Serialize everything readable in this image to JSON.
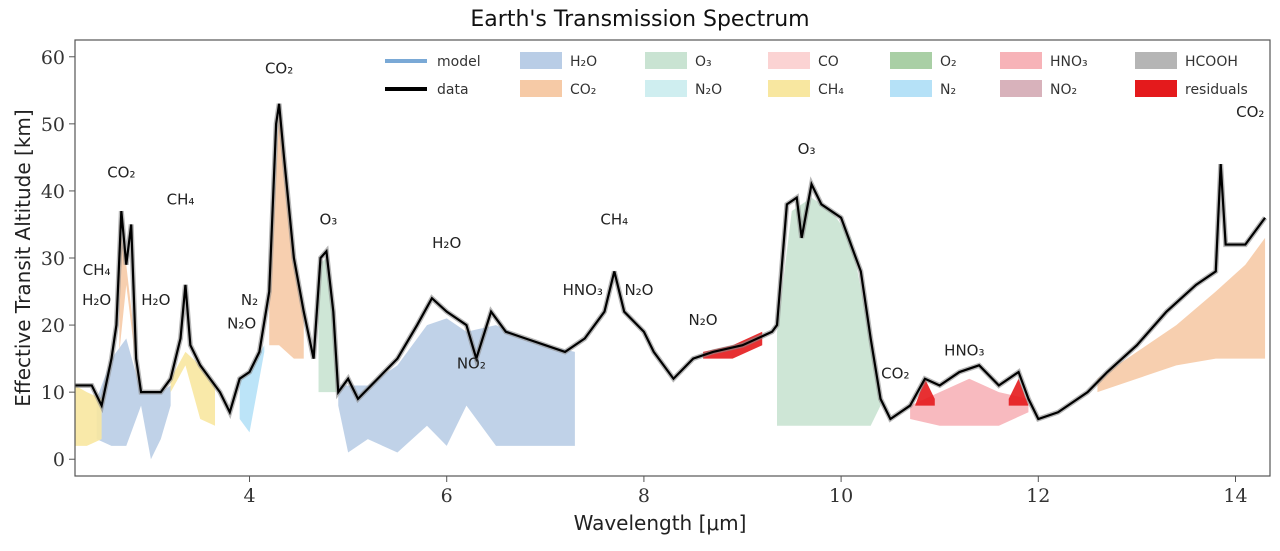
{
  "chart_data": {
    "type": "area",
    "title": "Earth's Transmission Spectrum",
    "xlabel": "Wavelength [μm]",
    "ylabel": "Effective Transit Altitude [km]",
    "xlim": [
      2.23,
      14.35
    ],
    "ylim": [
      -2.5,
      62.5
    ],
    "xticks": [
      4,
      6,
      8,
      10,
      12,
      14
    ],
    "yticks": [
      0,
      10,
      20,
      30,
      40,
      50,
      60
    ],
    "grid": false,
    "legend_position": "top",
    "colors": {
      "model": "#7aa9d6",
      "data": "#000000",
      "H₂O": "#b9cde6",
      "CO₂": "#f6caa6",
      "O₃": "#c9e3d2",
      "N₂O": "#cfeef0",
      "CO": "#fbd3d3",
      "CH₄": "#f8e7a0",
      "O₂": "#a9cfa5",
      "N₂": "#b5e1f7",
      "HNO₃": "#f7b3b8",
      "NO₂": "#d8b2bb",
      "HCOOH": "#b5b5b5",
      "residuals": "#e41a1c"
    },
    "legend": [
      {
        "label": "model",
        "kind": "line"
      },
      {
        "label": "data",
        "kind": "line"
      },
      {
        "label": "H₂O",
        "kind": "patch"
      },
      {
        "label": "CO₂",
        "kind": "patch"
      },
      {
        "label": "O₃",
        "kind": "patch"
      },
      {
        "label": "N₂O",
        "kind": "patch"
      },
      {
        "label": "CO",
        "kind": "patch"
      },
      {
        "label": "CH₄",
        "kind": "patch"
      },
      {
        "label": "O₂",
        "kind": "patch"
      },
      {
        "label": "N₂",
        "kind": "patch"
      },
      {
        "label": "HNO₃",
        "kind": "patch"
      },
      {
        "label": "NO₂",
        "kind": "patch"
      },
      {
        "label": "HCOOH",
        "kind": "patch"
      },
      {
        "label": "residuals",
        "kind": "patch"
      }
    ],
    "data_series": {
      "x": [
        2.23,
        2.4,
        2.5,
        2.6,
        2.65,
        2.7,
        2.75,
        2.8,
        2.85,
        2.9,
        3.1,
        3.2,
        3.3,
        3.35,
        3.4,
        3.5,
        3.6,
        3.7,
        3.8,
        3.9,
        4.0,
        4.1,
        4.2,
        4.27,
        4.3,
        4.35,
        4.45,
        4.55,
        4.65,
        4.72,
        4.78,
        4.85,
        4.9,
        5.0,
        5.1,
        5.3,
        5.5,
        5.7,
        5.85,
        6.0,
        6.2,
        6.3,
        6.45,
        6.6,
        6.8,
        7.0,
        7.2,
        7.4,
        7.6,
        7.7,
        7.8,
        8.0,
        8.1,
        8.3,
        8.5,
        8.7,
        9.0,
        9.3,
        9.35,
        9.45,
        9.55,
        9.6,
        9.7,
        9.8,
        10.0,
        10.2,
        10.3,
        10.4,
        10.5,
        10.7,
        10.85,
        11.0,
        11.2,
        11.4,
        11.6,
        11.8,
        11.9,
        12.0,
        12.2,
        12.5,
        12.7,
        13.0,
        13.3,
        13.6,
        13.8,
        13.85,
        13.9,
        14.1,
        14.3
      ],
      "y": [
        11,
        11,
        8,
        15,
        20,
        37,
        29,
        35,
        15,
        10,
        10,
        12,
        18,
        26,
        17,
        14,
        12,
        10,
        7,
        12,
        13,
        16,
        25,
        50,
        53,
        45,
        30,
        22,
        15,
        30,
        31,
        22,
        10,
        12,
        9,
        12,
        15,
        20,
        24,
        22,
        20,
        15,
        22,
        19,
        18,
        17,
        16,
        18,
        22,
        28,
        22,
        19,
        16,
        12,
        15,
        16,
        17,
        19,
        20,
        38,
        39,
        33,
        41,
        38,
        36,
        28,
        18,
        9,
        6,
        8,
        12,
        11,
        13,
        14,
        11,
        13,
        9,
        6,
        7,
        10,
        13,
        17,
        22,
        26,
        28,
        44,
        32,
        32,
        36
      ]
    },
    "absorbers": [
      {
        "species": "H₂O",
        "x": [
          2.45,
          2.6,
          2.75,
          2.9,
          3.0,
          3.1,
          3.2
        ],
        "lower": [
          3,
          2,
          2,
          8,
          0,
          3,
          8
        ],
        "upper": [
          9,
          15,
          18,
          10,
          10,
          10,
          11
        ]
      },
      {
        "species": "CH₄",
        "x": [
          2.23,
          2.35,
          2.5
        ],
        "lower": [
          2,
          2,
          3
        ],
        "upper": [
          11,
          10,
          9
        ]
      },
      {
        "species": "CO₂",
        "x": [
          2.68,
          2.75,
          2.85
        ],
        "lower": [
          16,
          26,
          14
        ],
        "upper": [
          35,
          29,
          16
        ]
      },
      {
        "species": "CH₄",
        "x": [
          3.2,
          3.35,
          3.5,
          3.65
        ],
        "lower": [
          10,
          14,
          6,
          5
        ],
        "upper": [
          12,
          16,
          14,
          11
        ]
      },
      {
        "species": "N₂",
        "x": [
          3.9,
          4.0,
          4.15
        ],
        "lower": [
          6,
          4,
          16
        ],
        "upper": [
          12,
          13,
          17
        ]
      },
      {
        "species": "CO₂",
        "x": [
          4.2,
          4.3,
          4.45,
          4.55
        ],
        "lower": [
          17,
          17,
          15,
          15
        ],
        "upper": [
          24,
          52,
          30,
          22
        ]
      },
      {
        "species": "O₃",
        "x": [
          4.7,
          4.78,
          4.85,
          4.9
        ],
        "lower": [
          10,
          10,
          10,
          10
        ],
        "upper": [
          29,
          30,
          22,
          12
        ]
      },
      {
        "species": "H₂O",
        "x": [
          4.9,
          5.0,
          5.2,
          5.5,
          5.8,
          6.0,
          6.2,
          6.5,
          6.8,
          7.0,
          7.3
        ],
        "lower": [
          8,
          1,
          3,
          1,
          5,
          2,
          8,
          2,
          2,
          2,
          2
        ],
        "upper": [
          11,
          11,
          11,
          14,
          20,
          21,
          19,
          20,
          18,
          17,
          16
        ]
      },
      {
        "species": "O₃",
        "x": [
          9.35,
          9.5,
          9.7,
          9.9,
          10.1,
          10.3,
          10.4
        ],
        "lower": [
          5,
          5,
          5,
          5,
          5,
          5,
          8
        ],
        "upper": [
          19,
          37,
          39,
          37,
          33,
          18,
          9
        ]
      },
      {
        "species": "HNO₃",
        "x": [
          10.7,
          11.0,
          11.3,
          11.6,
          11.9
        ],
        "lower": [
          6,
          5,
          5,
          5,
          7
        ],
        "upper": [
          8,
          10,
          12,
          10,
          9
        ]
      },
      {
        "species": "CO₂",
        "x": [
          12.6,
          13.0,
          13.4,
          13.8,
          14.1,
          14.3
        ],
        "lower": [
          10,
          12,
          14,
          15,
          15,
          15
        ],
        "upper": [
          12,
          16,
          20,
          25,
          29,
          33
        ]
      }
    ],
    "residual_regions": [
      {
        "x": [
          10.75,
          10.85,
          10.95
        ],
        "lower": [
          8,
          8,
          8
        ],
        "upper": [
          8,
          12,
          9
        ]
      },
      {
        "x": [
          11.7,
          11.8,
          11.9
        ],
        "lower": [
          8,
          8,
          8
        ],
        "upper": [
          9,
          12,
          8
        ]
      },
      {
        "x": [
          8.6,
          8.9,
          9.2
        ],
        "lower": [
          15,
          15,
          17
        ],
        "upper": [
          16,
          17,
          19
        ]
      }
    ],
    "annotations": [
      {
        "text": "CO₂",
        "x": 4.3,
        "y": 57.5
      },
      {
        "text": "CO₂",
        "x": 2.7,
        "y": 42
      },
      {
        "text": "CH₄",
        "x": 3.3,
        "y": 38
      },
      {
        "text": "CH₄",
        "x": 2.45,
        "y": 27.5
      },
      {
        "text": "H₂O",
        "x": 2.45,
        "y": 23
      },
      {
        "text": "H₂O",
        "x": 3.05,
        "y": 23
      },
      {
        "text": "N₂",
        "x": 4.0,
        "y": 23
      },
      {
        "text": "N₂O",
        "x": 3.92,
        "y": 19.5
      },
      {
        "text": "O₃",
        "x": 4.8,
        "y": 35
      },
      {
        "text": "H₂O",
        "x": 6.0,
        "y": 31.5
      },
      {
        "text": "NO₂",
        "x": 6.25,
        "y": 13.5
      },
      {
        "text": "HNO₃",
        "x": 7.38,
        "y": 24.5
      },
      {
        "text": "CH₄",
        "x": 7.7,
        "y": 35
      },
      {
        "text": "N₂O",
        "x": 7.95,
        "y": 24.5
      },
      {
        "text": "N₂O",
        "x": 8.6,
        "y": 20
      },
      {
        "text": "O₃",
        "x": 9.65,
        "y": 45.5
      },
      {
        "text": "CO₂",
        "x": 10.55,
        "y": 12
      },
      {
        "text": "HNO₃",
        "x": 11.25,
        "y": 15.5
      },
      {
        "text": "CO₂",
        "x": 14.15,
        "y": 51
      }
    ]
  }
}
